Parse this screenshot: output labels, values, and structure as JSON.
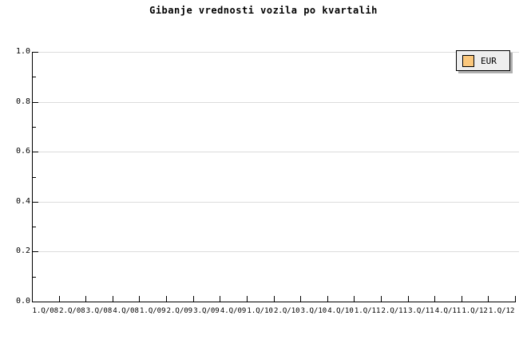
{
  "chart_data": {
    "type": "line",
    "title": "Gibanje vrednosti vozila po kvartalih",
    "categories": [
      "1.Q/08",
      "2.Q/08",
      "3.Q/08",
      "4.Q/08",
      "1.Q/09",
      "2.Q/09",
      "3.Q/09",
      "4.Q/09",
      "1.Q/10",
      "2.Q/10",
      "3.Q/10",
      "4.Q/10",
      "1.Q/11",
      "2.Q/11",
      "3.Q/11",
      "4.Q/11",
      "1.Q/12",
      "1.Q/12"
    ],
    "series": [
      {
        "name": "EUR",
        "color": "#fbc87d",
        "values": []
      }
    ],
    "xlabel": "",
    "ylabel": "",
    "ylim": [
      0.0,
      1.0
    ],
    "y_ticks": [
      {
        "value": 0.0,
        "label": "0.0"
      },
      {
        "value": 0.2,
        "label": "0.2"
      },
      {
        "value": 0.4,
        "label": "0.4"
      },
      {
        "value": 0.6,
        "label": "0.6"
      },
      {
        "value": 0.8,
        "label": "0.8"
      },
      {
        "value": 1.0,
        "label": "1.0"
      }
    ],
    "y_minor_ticks": [
      0.1,
      0.3,
      0.5,
      0.7,
      0.9
    ],
    "grid": "horizontal gridlines at every 0.2, light gray",
    "legend_position": "top-right",
    "plot_is_empty": true
  },
  "legend": {
    "label": "EUR",
    "swatch_color": "#fbc87d"
  },
  "colors": {
    "background": "#ffffff",
    "axis": "#000000",
    "grid": "#dcdcdc",
    "legend_bg": "#eeeeee",
    "legend_shadow": "#b0b0b0",
    "swatch": "#fbc87d",
    "text": "#000000"
  }
}
